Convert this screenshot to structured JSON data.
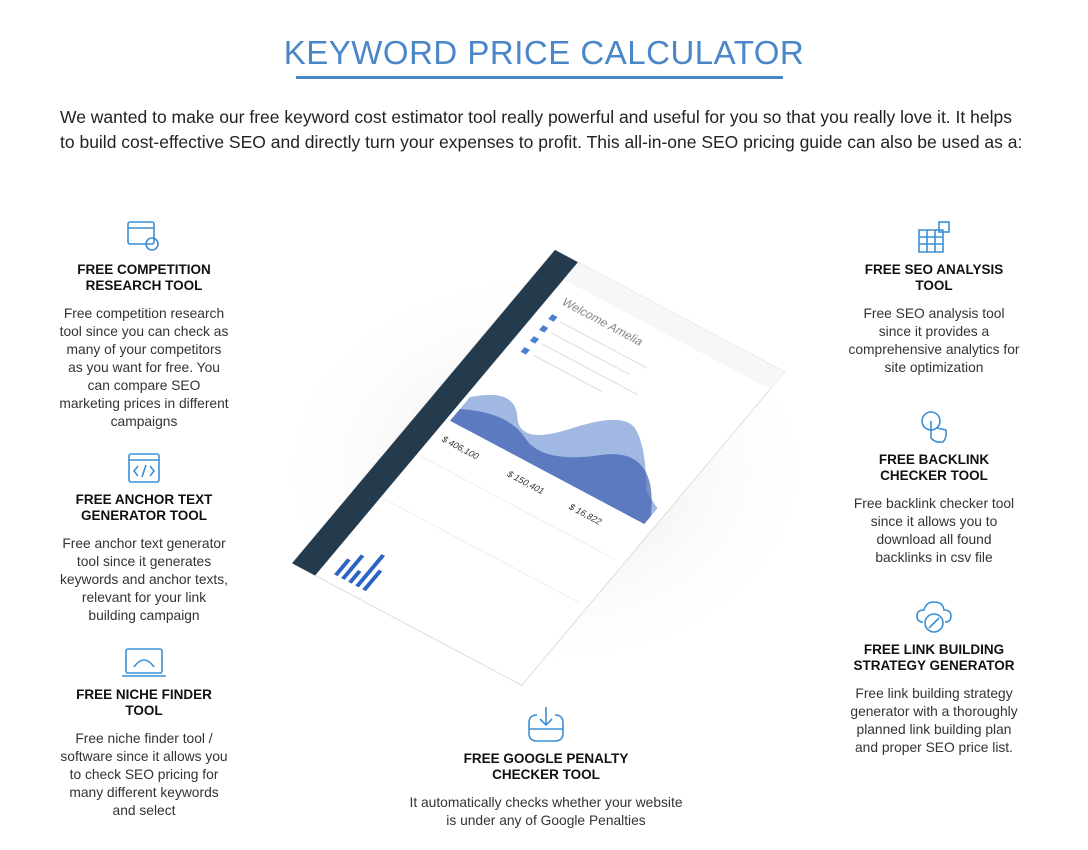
{
  "header": {
    "title": "KEYWORD PRICE CALCULATOR",
    "intro": "We wanted to make our free keyword cost estimator tool really powerful and useful for you so that you really love it. It helps to build cost-effective SEO and directly turn your expenses to profit. This all-in-one SEO pricing guide can also be used as a:"
  },
  "features": [
    {
      "title": "FREE COMPETITION RESEARCH TOOL",
      "description": "Free competition research tool since you can check as many of your competitors as you want for free. You can compare SEO marketing prices in different campaigns"
    },
    {
      "title": "FREE ANCHOR TEXT GENERATOR TOOL",
      "description": "Free anchor text generator tool since it generates keywords and anchor texts, relevant for your link building campaign"
    },
    {
      "title": "FREE NICHE FINDER TOOL",
      "description": "Free niche finder tool / software since it allows you to check SEO pricing for many different keywords and select"
    },
    {
      "title": "FREE SEO ANALYSIS TOOL",
      "description": "Free SEO analysis tool since it provides a comprehensive analytics for site optimization"
    },
    {
      "title": "FREE BACKLINK CHECKER TOOL",
      "description": "Free backlink checker tool since it allows you to download all found backlinks in csv file"
    },
    {
      "title": "FREE LINK BUILDING STRATEGY GENERATOR",
      "description": "Free link building strategy generator with a thoroughly planned link building plan and proper SEO price list."
    },
    {
      "title": "FREE GOOGLE PENALTY CHECKER TOOL",
      "description": "It automatically checks whether your website is under any of Google Penalties"
    }
  ],
  "mockup": {
    "greeting": "Welcome Amelia",
    "amounts": [
      "$ 406,100",
      "$ 150,401",
      "$ 16,822"
    ]
  }
}
